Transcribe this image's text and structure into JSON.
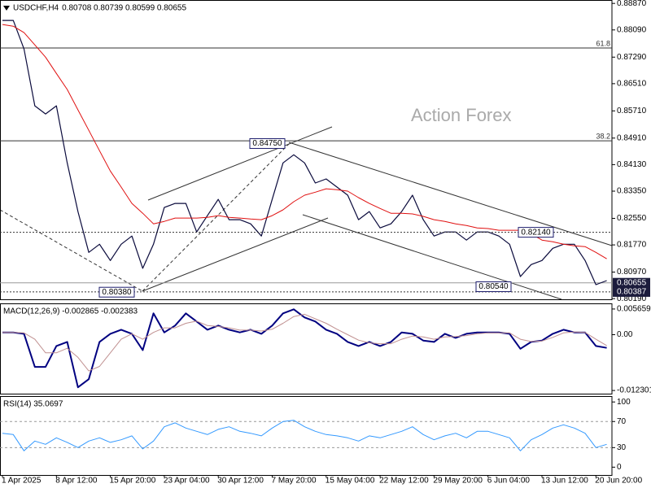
{
  "chart_data": [
    {
      "type": "line",
      "title": "USDCHF,H4",
      "subtitle": "0.80708 0.80739 0.80599 0.80655",
      "watermark": "Action Forex",
      "ylim": [
        0.8017,
        0.8897
      ],
      "yticks": [
        {
          "value": 0.8887,
          "label": "0.88870"
        },
        {
          "value": 0.8809,
          "label": "0.88090"
        },
        {
          "value": 0.8729,
          "label": "0.87290"
        },
        {
          "value": 0.8651,
          "label": "0.86510"
        },
        {
          "value": 0.8571,
          "label": "0.85710"
        },
        {
          "value": 0.8491,
          "label": "0.84910"
        },
        {
          "value": 0.8413,
          "label": "0.84130"
        },
        {
          "value": 0.8335,
          "label": "0.83350"
        },
        {
          "value": 0.8255,
          "label": "0.82550"
        },
        {
          "value": 0.8177,
          "label": "0.81770"
        },
        {
          "value": 0.8097,
          "label": "0.80970"
        },
        {
          "value": 0.8019,
          "label": "0.80190"
        }
      ],
      "levels": [
        {
          "value": 0.8756,
          "label": "61.8"
        },
        {
          "value": 0.8483,
          "label": "38.2"
        }
      ],
      "annotations": [
        {
          "value": 0.8475,
          "label": "0.84750"
        },
        {
          "value": 0.8038,
          "label": "0.80380"
        },
        {
          "value": 0.8054,
          "label": "0.80540"
        },
        {
          "value": 0.8214,
          "label": "0.82140"
        }
      ],
      "price_markers": [
        {
          "value": 0.80655,
          "label": "0.80655"
        },
        {
          "value": 0.80387,
          "label": "0.80387"
        }
      ],
      "series": [
        {
          "color": "#0a0a3c",
          "line_width": 1.2,
          "values": [
            0.8837,
            0.8837,
            0.8753,
            0.8586,
            0.8562,
            0.8586,
            0.8418,
            0.8275,
            0.8155,
            0.8179,
            0.8131,
            0.8179,
            0.8203,
            0.8108,
            0.8179,
            0.8287,
            0.8299,
            0.8299,
            0.8215,
            0.8263,
            0.8311,
            0.8251,
            0.8251,
            0.8239,
            0.8203,
            0.8311,
            0.8418,
            0.8442,
            0.8418,
            0.8359,
            0.8371,
            0.8347,
            0.8323,
            0.8251,
            0.8275,
            0.8227,
            0.8239,
            0.8275,
            0.8323,
            0.8251,
            0.8203,
            0.8215,
            0.8215,
            0.8191,
            0.8215,
            0.8215,
            0.8203,
            0.8179,
            0.8084,
            0.8119,
            0.8131,
            0.8167,
            0.8179,
            0.8179,
            0.8131,
            0.806,
            0.8072
          ]
        },
        {
          "color": "#e01010",
          "line_width": 1,
          "values": [
            0.8825,
            0.882,
            0.8801,
            0.8765,
            0.8729,
            0.8681,
            0.8634,
            0.8574,
            0.8514,
            0.8454,
            0.8394,
            0.8347,
            0.8299,
            0.827,
            0.8239,
            0.8246,
            0.8256,
            0.8256,
            0.8256,
            0.8258,
            0.8263,
            0.8258,
            0.8256,
            0.8253,
            0.8251,
            0.8263,
            0.828,
            0.8304,
            0.8323,
            0.8332,
            0.8342,
            0.8339,
            0.8335,
            0.8316,
            0.8299,
            0.8284,
            0.827,
            0.827,
            0.8268,
            0.8261,
            0.8251,
            0.8246,
            0.8239,
            0.8234,
            0.8227,
            0.8225,
            0.822,
            0.822,
            0.822,
            0.821,
            0.8191,
            0.8186,
            0.8179,
            0.8174,
            0.8172,
            0.8155,
            0.8136
          ]
        }
      ]
    },
    {
      "type": "line",
      "title": "MACD(12,26,9) -0.002865 -0.002383",
      "ylim": [
        -0.013,
        0.0069
      ],
      "yticks": [
        0.005659,
        {
          "value": 0,
          "label": "0.00"
        },
        -0.012301
      ],
      "series": [
        {
          "color": "#000080",
          "line_width": 2,
          "values": [
            0.0005,
            0.0005,
            0.0002,
            -0.0071,
            -0.0071,
            -0.0025,
            -0.0016,
            -0.0116,
            -0.0098,
            -0.0016,
            0.0002,
            0.0011,
            0.0002,
            -0.0034,
            0.0047,
            0.0005,
            0.002,
            0.0047,
            0.0029,
            0.0011,
            0.002,
            0.0011,
            0.0005,
            0.0011,
            0.0002,
            0.002,
            0.0047,
            0.0056,
            0.0038,
            0.0029,
            0.0011,
            0.0002,
            -0.0016,
            -0.0025,
            -0.0016,
            -0.0025,
            -0.0016,
            0.0005,
            0.0002,
            -0.0013,
            -0.0016,
            0.0002,
            -0.0007,
            0.0002,
            0.0005,
            0.0005,
            0.0005,
            0.0002,
            -0.0031,
            -0.0016,
            -0.0013,
            0.0002,
            0.0011,
            0.0005,
            0.0005,
            -0.0025,
            -0.0029
          ]
        },
        {
          "color": "#c09090",
          "line_width": 1,
          "values": [
            0.0005,
            0.0005,
            0.0004,
            -0.001,
            -0.004,
            -0.004,
            -0.003,
            -0.005,
            -0.008,
            -0.007,
            -0.004,
            -0.001,
            0.0002,
            -0.001,
            0.0005,
            0.0015,
            0.0015,
            0.0025,
            0.003,
            0.002,
            0.0018,
            0.0015,
            0.001,
            0.001,
            0.0008,
            0.0012,
            0.0025,
            0.004,
            0.0045,
            0.0035,
            0.0025,
            0.0012,
            0.0,
            -0.0012,
            -0.0018,
            -0.002,
            -0.002,
            -0.001,
            -0.0003,
            -0.0005,
            -0.001,
            -0.0005,
            -0.0004,
            -0.0002,
            0.0002,
            0.0004,
            0.0004,
            0.0004,
            -0.001,
            -0.0015,
            -0.0014,
            -0.0006,
            0.0004,
            0.0006,
            0.0005,
            -0.001,
            -0.0024
          ]
        }
      ]
    },
    {
      "type": "line",
      "title": "RSI(14) 35.0697",
      "ylim": [
        -12,
        109
      ],
      "yticks": [
        100,
        70,
        30,
        0
      ],
      "levels": [
        70,
        30
      ],
      "categories": [
        "1 Apr 2025",
        null,
        null,
        null,
        null,
        "8 Apr 12:00",
        null,
        null,
        null,
        null,
        "15 Apr 20:00",
        null,
        null,
        null,
        null,
        "23 Apr 04:00",
        null,
        null,
        null,
        null,
        "30 Apr 12:00",
        null,
        null,
        null,
        null,
        "7 May 20:00",
        null,
        null,
        null,
        null,
        "15 May 04:00",
        null,
        null,
        null,
        null,
        "22 May 12:00",
        null,
        null,
        null,
        null,
        "29 May 20:00",
        null,
        null,
        null,
        null,
        "6 Jun 04:00",
        null,
        null,
        null,
        null,
        "13 Jun 12:00",
        null,
        null,
        null,
        null,
        "20 Jun 20:00",
        null
      ],
      "series": [
        {
          "color": "#3399ff",
          "line_width": 1,
          "values": [
            52,
            50,
            25,
            40,
            35,
            45,
            38,
            30,
            40,
            45,
            38,
            42,
            48,
            28,
            40,
            62,
            68,
            60,
            55,
            50,
            58,
            62,
            55,
            52,
            48,
            60,
            70,
            72,
            62,
            55,
            50,
            48,
            45,
            40,
            48,
            45,
            50,
            55,
            62,
            50,
            42,
            48,
            52,
            45,
            55,
            55,
            50,
            45,
            25,
            42,
            50,
            60,
            65,
            60,
            52,
            30,
            35
          ]
        }
      ]
    }
  ]
}
